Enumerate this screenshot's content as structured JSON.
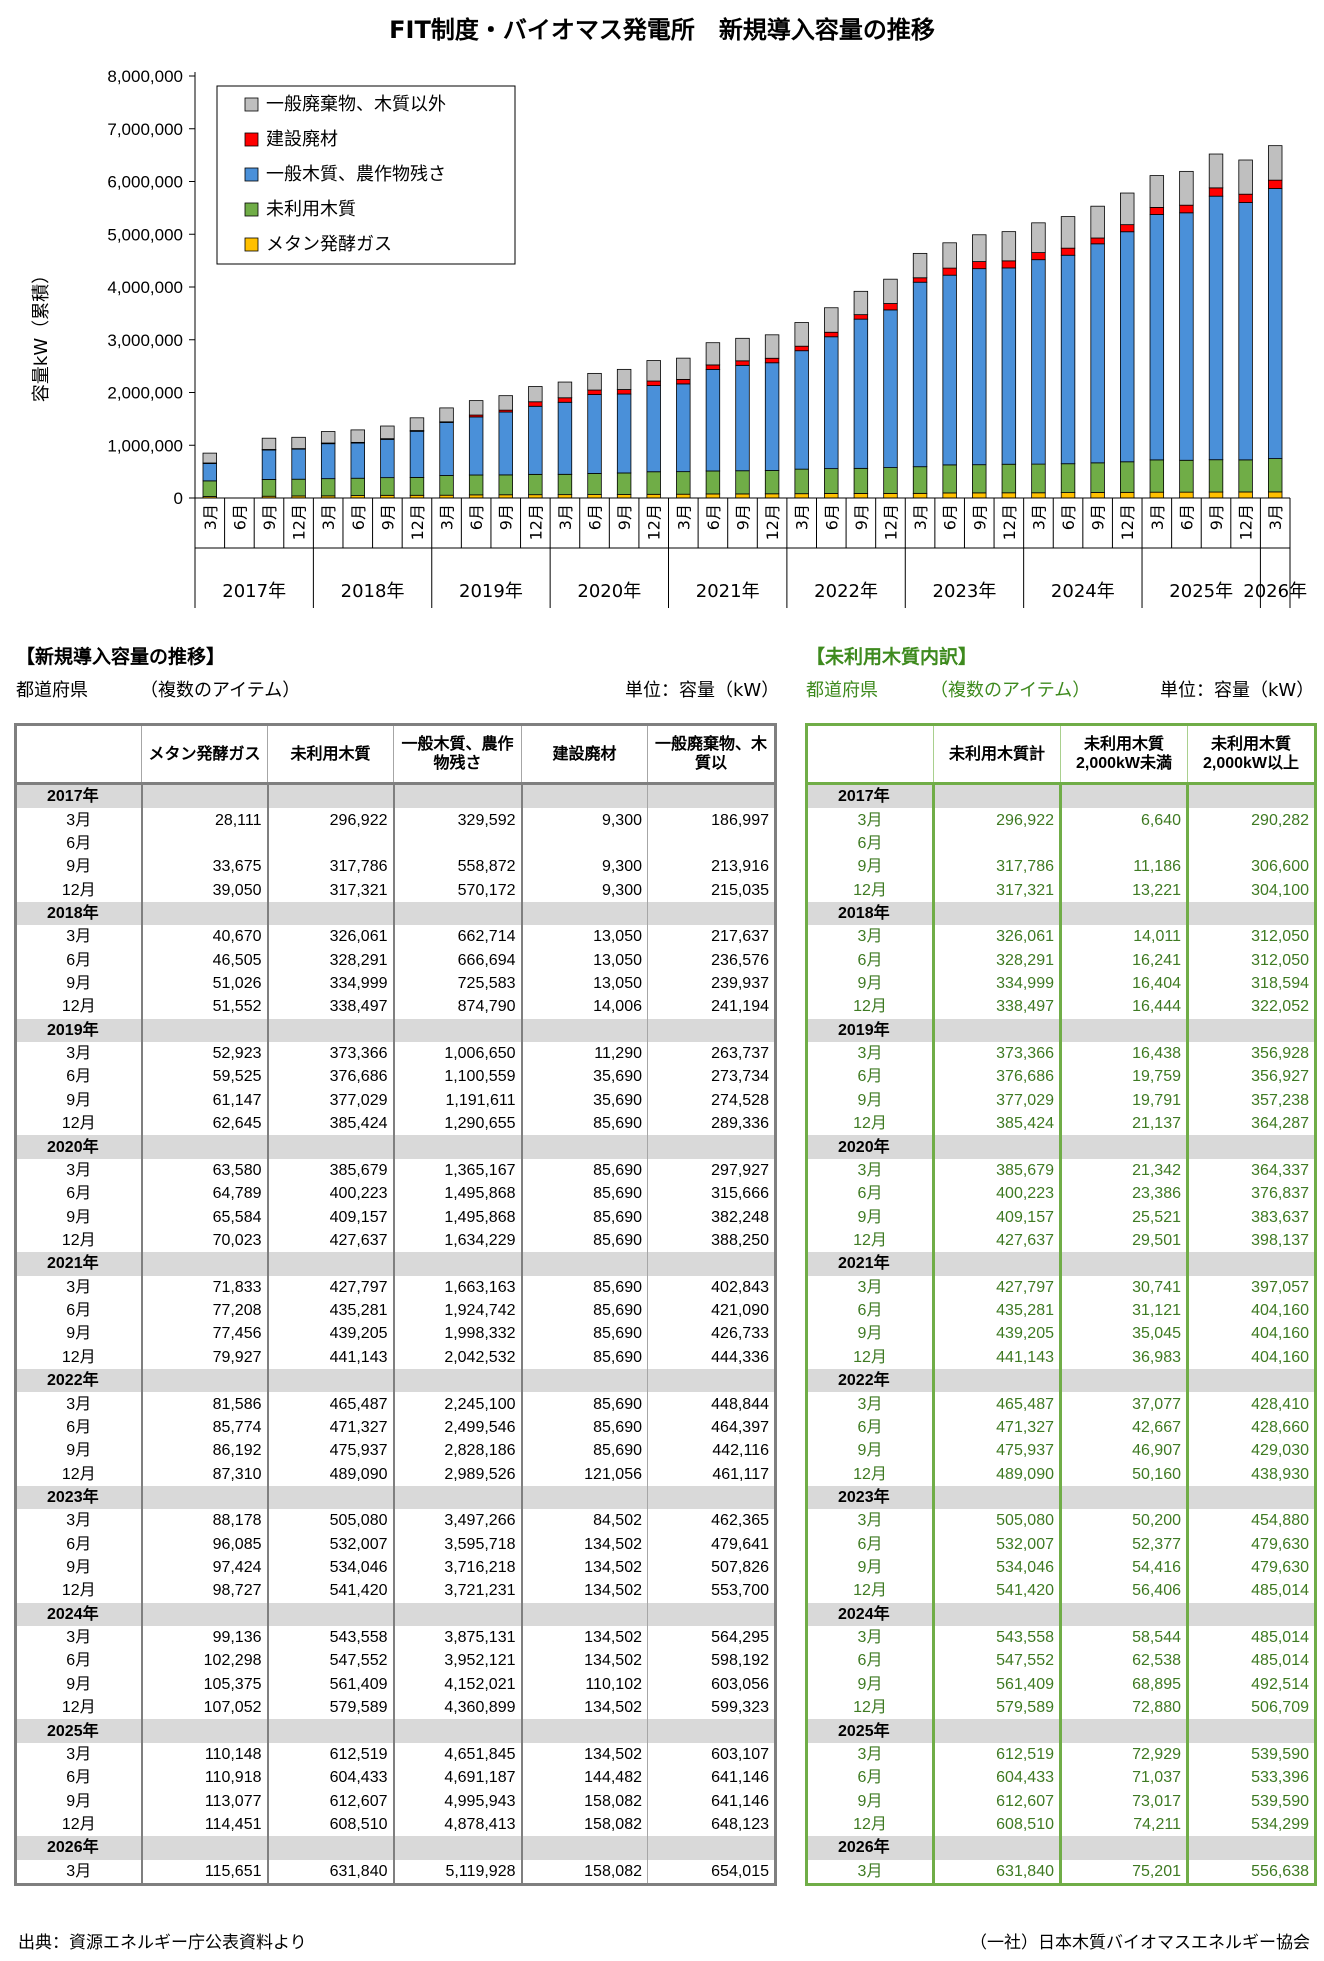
{
  "chart_data": {
    "type": "bar",
    "stacked": true,
    "title": "FIT制度・バイオマス発電所　新規導入容量の推移",
    "ylabel": "容量kW（累積）",
    "ylim": [
      0,
      8000000
    ],
    "yticks": [
      "8,000,000",
      "7,000,000",
      "6,000,000",
      "5,000,000",
      "4,000,000",
      "3,000,000",
      "2,000,000",
      "1,000,000",
      "0"
    ],
    "legend_position": "top-left",
    "legend": [
      "一般廃棄物、木質以外",
      "建設廃材",
      "一般木質、農作物残さ",
      "未利用木質",
      "メタン発酵ガス"
    ],
    "categories": [
      "3月",
      "6月",
      "9月",
      "12月",
      "3月",
      "6月",
      "9月",
      "12月",
      "3月",
      "6月",
      "9月",
      "12月",
      "3月",
      "6月",
      "9月",
      "12月",
      "3月",
      "6月",
      "9月",
      "12月",
      "3月",
      "6月",
      "9月",
      "12月",
      "3月",
      "6月",
      "9月",
      "12月",
      "3月",
      "6月",
      "9月",
      "12月",
      "3月",
      "6月",
      "9月",
      "12月",
      "3月"
    ],
    "year_groups": [
      "2017年",
      "2018年",
      "2019年",
      "2020年",
      "2021年",
      "2022年",
      "2023年",
      "2024年",
      "2025年",
      "2026年"
    ],
    "series": [
      {
        "name": "メタン発酵ガス",
        "color": "#ffc000",
        "values": [
          28111,
          0,
          33675,
          39050,
          40670,
          46505,
          51026,
          51552,
          52923,
          59525,
          61147,
          62645,
          63580,
          64789,
          65584,
          70023,
          71833,
          77208,
          77456,
          79927,
          81586,
          85774,
          86192,
          87310,
          88178,
          96085,
          97424,
          98727,
          99136,
          102298,
          105375,
          107052,
          110148,
          110918,
          113077,
          114451,
          115651
        ]
      },
      {
        "name": "未利用木質",
        "color": "#70ad47",
        "values": [
          296922,
          0,
          317786,
          317321,
          326061,
          328291,
          334999,
          338497,
          373366,
          376686,
          377029,
          385424,
          385679,
          400223,
          409157,
          427637,
          427797,
          435281,
          439205,
          441143,
          465487,
          471327,
          475937,
          489090,
          505080,
          532007,
          534046,
          541420,
          543558,
          547552,
          561409,
          579589,
          612519,
          604433,
          612607,
          608510,
          631840
        ]
      },
      {
        "name": "一般木質、農作物残さ",
        "color": "#4a90d9",
        "values": [
          329592,
          0,
          558872,
          570172,
          662714,
          666694,
          725583,
          874790,
          1006650,
          1100559,
          1191611,
          1290655,
          1365167,
          1495868,
          1495868,
          1634229,
          1663163,
          1924742,
          1998332,
          2042532,
          2245100,
          2499546,
          2828186,
          2989526,
          3497266,
          3595718,
          3716218,
          3721231,
          3875131,
          3952121,
          4152021,
          4360899,
          4651845,
          4691187,
          4995943,
          4878413,
          5119928
        ]
      },
      {
        "name": "建設廃材",
        "color": "#ff0000",
        "values": [
          9300,
          0,
          9300,
          9300,
          13050,
          13050,
          13050,
          14006,
          11290,
          35690,
          35690,
          85690,
          85690,
          85690,
          85690,
          85690,
          85690,
          85690,
          85690,
          85690,
          85690,
          85690,
          85690,
          121056,
          84502,
          134502,
          134502,
          134502,
          134502,
          134502,
          110102,
          134502,
          134502,
          144482,
          158082,
          158082,
          158082
        ]
      },
      {
        "name": "一般廃棄物、木質以外",
        "color": "#bfbfbf",
        "values": [
          186997,
          0,
          213916,
          215035,
          217637,
          236576,
          239937,
          241194,
          263737,
          273734,
          274528,
          289336,
          297927,
          315666,
          382248,
          388250,
          402843,
          421090,
          426733,
          444336,
          448844,
          464397,
          442116,
          461117,
          462365,
          479641,
          507826,
          553700,
          564295,
          598192,
          603056,
          599323,
          603107,
          641146,
          641146,
          648123,
          654015
        ]
      }
    ]
  },
  "main_table": {
    "title": "【新規導入容量の推移】",
    "filter_label": "都道府県",
    "filter_value": "（複数のアイテム）",
    "unit": "単位：容量（kW）",
    "headers": [
      "",
      "メタン発酵ガス",
      "未利用木質",
      "一般木質、農作物残さ",
      "建設廃材",
      "一般廃棄物、木質以"
    ],
    "years": [
      {
        "year": "2017年",
        "rows": [
          [
            "3月",
            "28,111",
            "296,922",
            "329,592",
            "9,300",
            "186,997"
          ],
          [
            "6月",
            "",
            "",
            "",
            "",
            ""
          ],
          [
            "9月",
            "33,675",
            "317,786",
            "558,872",
            "9,300",
            "213,916"
          ],
          [
            "12月",
            "39,050",
            "317,321",
            "570,172",
            "9,300",
            "215,035"
          ]
        ]
      },
      {
        "year": "2018年",
        "rows": [
          [
            "3月",
            "40,670",
            "326,061",
            "662,714",
            "13,050",
            "217,637"
          ],
          [
            "6月",
            "46,505",
            "328,291",
            "666,694",
            "13,050",
            "236,576"
          ],
          [
            "9月",
            "51,026",
            "334,999",
            "725,583",
            "13,050",
            "239,937"
          ],
          [
            "12月",
            "51,552",
            "338,497",
            "874,790",
            "14,006",
            "241,194"
          ]
        ]
      },
      {
        "year": "2019年",
        "rows": [
          [
            "3月",
            "52,923",
            "373,366",
            "1,006,650",
            "11,290",
            "263,737"
          ],
          [
            "6月",
            "59,525",
            "376,686",
            "1,100,559",
            "35,690",
            "273,734"
          ],
          [
            "9月",
            "61,147",
            "377,029",
            "1,191,611",
            "35,690",
            "274,528"
          ],
          [
            "12月",
            "62,645",
            "385,424",
            "1,290,655",
            "85,690",
            "289,336"
          ]
        ]
      },
      {
        "year": "2020年",
        "rows": [
          [
            "3月",
            "63,580",
            "385,679",
            "1,365,167",
            "85,690",
            "297,927"
          ],
          [
            "6月",
            "64,789",
            "400,223",
            "1,495,868",
            "85,690",
            "315,666"
          ],
          [
            "9月",
            "65,584",
            "409,157",
            "1,495,868",
            "85,690",
            "382,248"
          ],
          [
            "12月",
            "70,023",
            "427,637",
            "1,634,229",
            "85,690",
            "388,250"
          ]
        ]
      },
      {
        "year": "2021年",
        "rows": [
          [
            "3月",
            "71,833",
            "427,797",
            "1,663,163",
            "85,690",
            "402,843"
          ],
          [
            "6月",
            "77,208",
            "435,281",
            "1,924,742",
            "85,690",
            "421,090"
          ],
          [
            "9月",
            "77,456",
            "439,205",
            "1,998,332",
            "85,690",
            "426,733"
          ],
          [
            "12月",
            "79,927",
            "441,143",
            "2,042,532",
            "85,690",
            "444,336"
          ]
        ]
      },
      {
        "year": "2022年",
        "rows": [
          [
            "3月",
            "81,586",
            "465,487",
            "2,245,100",
            "85,690",
            "448,844"
          ],
          [
            "6月",
            "85,774",
            "471,327",
            "2,499,546",
            "85,690",
            "464,397"
          ],
          [
            "9月",
            "86,192",
            "475,937",
            "2,828,186",
            "85,690",
            "442,116"
          ],
          [
            "12月",
            "87,310",
            "489,090",
            "2,989,526",
            "121,056",
            "461,117"
          ]
        ]
      },
      {
        "year": "2023年",
        "rows": [
          [
            "3月",
            "88,178",
            "505,080",
            "3,497,266",
            "84,502",
            "462,365"
          ],
          [
            "6月",
            "96,085",
            "532,007",
            "3,595,718",
            "134,502",
            "479,641"
          ],
          [
            "9月",
            "97,424",
            "534,046",
            "3,716,218",
            "134,502",
            "507,826"
          ],
          [
            "12月",
            "98,727",
            "541,420",
            "3,721,231",
            "134,502",
            "553,700"
          ]
        ]
      },
      {
        "year": "2024年",
        "rows": [
          [
            "3月",
            "99,136",
            "543,558",
            "3,875,131",
            "134,502",
            "564,295"
          ],
          [
            "6月",
            "102,298",
            "547,552",
            "3,952,121",
            "134,502",
            "598,192"
          ],
          [
            "9月",
            "105,375",
            "561,409",
            "4,152,021",
            "110,102",
            "603,056"
          ],
          [
            "12月",
            "107,052",
            "579,589",
            "4,360,899",
            "134,502",
            "599,323"
          ]
        ]
      },
      {
        "year": "2025年",
        "rows": [
          [
            "3月",
            "110,148",
            "612,519",
            "4,651,845",
            "134,502",
            "603,107"
          ],
          [
            "6月",
            "110,918",
            "604,433",
            "4,691,187",
            "144,482",
            "641,146"
          ],
          [
            "9月",
            "113,077",
            "612,607",
            "4,995,943",
            "158,082",
            "641,146"
          ],
          [
            "12月",
            "114,451",
            "608,510",
            "4,878,413",
            "158,082",
            "648,123"
          ]
        ]
      },
      {
        "year": "2026年",
        "rows": [
          [
            "3月",
            "115,651",
            "631,840",
            "5,119,928",
            "158,082",
            "654,015"
          ]
        ]
      }
    ]
  },
  "green_table": {
    "title": "【未利用木質内訳】",
    "filter_label": "都道府県",
    "filter_value": "（複数のアイテム）",
    "unit": "単位：容量（kW）",
    "headers": [
      "",
      "未利用木質計",
      "未利用木質 2,000kW未満",
      "未利用木質 2,000kW以上"
    ],
    "years": [
      {
        "year": "2017年",
        "rows": [
          [
            "3月",
            "296,922",
            "6,640",
            "290,282"
          ],
          [
            "6月",
            "",
            "",
            ""
          ],
          [
            "9月",
            "317,786",
            "11,186",
            "306,600"
          ],
          [
            "12月",
            "317,321",
            "13,221",
            "304,100"
          ]
        ]
      },
      {
        "year": "2018年",
        "rows": [
          [
            "3月",
            "326,061",
            "14,011",
            "312,050"
          ],
          [
            "6月",
            "328,291",
            "16,241",
            "312,050"
          ],
          [
            "9月",
            "334,999",
            "16,404",
            "318,594"
          ],
          [
            "12月",
            "338,497",
            "16,444",
            "322,052"
          ]
        ]
      },
      {
        "year": "2019年",
        "rows": [
          [
            "3月",
            "373,366",
            "16,438",
            "356,928"
          ],
          [
            "6月",
            "376,686",
            "19,759",
            "356,927"
          ],
          [
            "9月",
            "377,029",
            "19,791",
            "357,238"
          ],
          [
            "12月",
            "385,424",
            "21,137",
            "364,287"
          ]
        ]
      },
      {
        "year": "2020年",
        "rows": [
          [
            "3月",
            "385,679",
            "21,342",
            "364,337"
          ],
          [
            "6月",
            "400,223",
            "23,386",
            "376,837"
          ],
          [
            "9月",
            "409,157",
            "25,521",
            "383,637"
          ],
          [
            "12月",
            "427,637",
            "29,501",
            "398,137"
          ]
        ]
      },
      {
        "year": "2021年",
        "rows": [
          [
            "3月",
            "427,797",
            "30,741",
            "397,057"
          ],
          [
            "6月",
            "435,281",
            "31,121",
            "404,160"
          ],
          [
            "9月",
            "439,205",
            "35,045",
            "404,160"
          ],
          [
            "12月",
            "441,143",
            "36,983",
            "404,160"
          ]
        ]
      },
      {
        "year": "2022年",
        "rows": [
          [
            "3月",
            "465,487",
            "37,077",
            "428,410"
          ],
          [
            "6月",
            "471,327",
            "42,667",
            "428,660"
          ],
          [
            "9月",
            "475,937",
            "46,907",
            "429,030"
          ],
          [
            "12月",
            "489,090",
            "50,160",
            "438,930"
          ]
        ]
      },
      {
        "year": "2023年",
        "rows": [
          [
            "3月",
            "505,080",
            "50,200",
            "454,880"
          ],
          [
            "6月",
            "532,007",
            "52,377",
            "479,630"
          ],
          [
            "9月",
            "534,046",
            "54,416",
            "479,630"
          ],
          [
            "12月",
            "541,420",
            "56,406",
            "485,014"
          ]
        ]
      },
      {
        "year": "2024年",
        "rows": [
          [
            "3月",
            "543,558",
            "58,544",
            "485,014"
          ],
          [
            "6月",
            "547,552",
            "62,538",
            "485,014"
          ],
          [
            "9月",
            "561,409",
            "68,895",
            "492,514"
          ],
          [
            "12月",
            "579,589",
            "72,880",
            "506,709"
          ]
        ]
      },
      {
        "year": "2025年",
        "rows": [
          [
            "3月",
            "612,519",
            "72,929",
            "539,590"
          ],
          [
            "6月",
            "604,433",
            "71,037",
            "533,396"
          ],
          [
            "9月",
            "612,607",
            "73,017",
            "539,590"
          ],
          [
            "12月",
            "608,510",
            "74,211",
            "534,299"
          ]
        ]
      },
      {
        "year": "2026年",
        "rows": [
          [
            "3月",
            "631,840",
            "75,201",
            "556,638"
          ]
        ]
      }
    ]
  },
  "footer": {
    "source": "出典：資源エネルギー庁公表資料より",
    "org": "（一社）日本木質バイオマスエネルギー協会"
  }
}
